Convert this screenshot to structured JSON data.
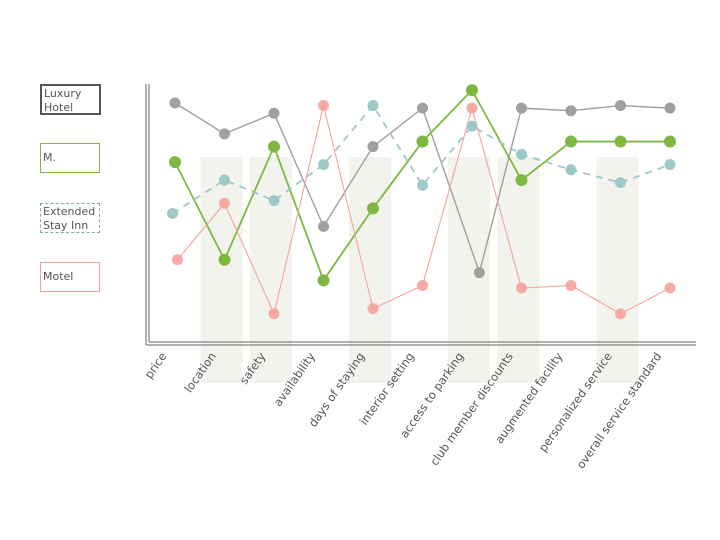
{
  "chart_data": {
    "type": "line",
    "categories": [
      "price",
      "location",
      "safety",
      "availability",
      "days of staying",
      "interior setting",
      "access to parking",
      "club member discounts",
      "augmented facility",
      "personalized service",
      "overall service standard"
    ],
    "ylim": [
      0,
      100
    ],
    "grid": false,
    "legend_position": "left",
    "series": [
      {
        "name": "Luxury Hotel",
        "color": "#a0a0a0",
        "border": "#555555",
        "dash": false,
        "values": [
          93,
          81,
          89,
          45,
          76,
          91,
          27,
          91,
          90,
          92,
          91
        ],
        "value_x": [
          0,
          1,
          2,
          3,
          4,
          5,
          6.15,
          7,
          8,
          9,
          10
        ]
      },
      {
        "name": "M.",
        "color": "#7db843",
        "border": "#7db843",
        "dash": false,
        "values": [
          70,
          32,
          76,
          24,
          52,
          78,
          98,
          63,
          78,
          78,
          78
        ],
        "value_x": [
          0,
          1,
          2,
          3,
          4,
          5,
          6,
          7,
          8,
          9,
          10
        ]
      },
      {
        "name": "Extended Stay Inn",
        "color": "#9ec9c9",
        "border": "#72aeae",
        "dash": true,
        "values": [
          50,
          63,
          55,
          69,
          92,
          61,
          84,
          73,
          67,
          62,
          69
        ],
        "value_x": [
          -0.05,
          1,
          2,
          3,
          4,
          5,
          6,
          7,
          8,
          9,
          10
        ]
      },
      {
        "name": "Motel",
        "color": "#f5a39a",
        "border": "#f5a39a",
        "dash": false,
        "values": [
          32,
          54,
          11,
          92,
          13,
          22,
          91,
          21,
          22,
          11,
          21
        ],
        "value_x": [
          0.05,
          1,
          2,
          3,
          4,
          5,
          6,
          7,
          8,
          9,
          10
        ]
      }
    ],
    "background_bands": [
      "location",
      "safety",
      "days of staying",
      "access to parking",
      "club member discounts",
      "personalized service"
    ]
  }
}
